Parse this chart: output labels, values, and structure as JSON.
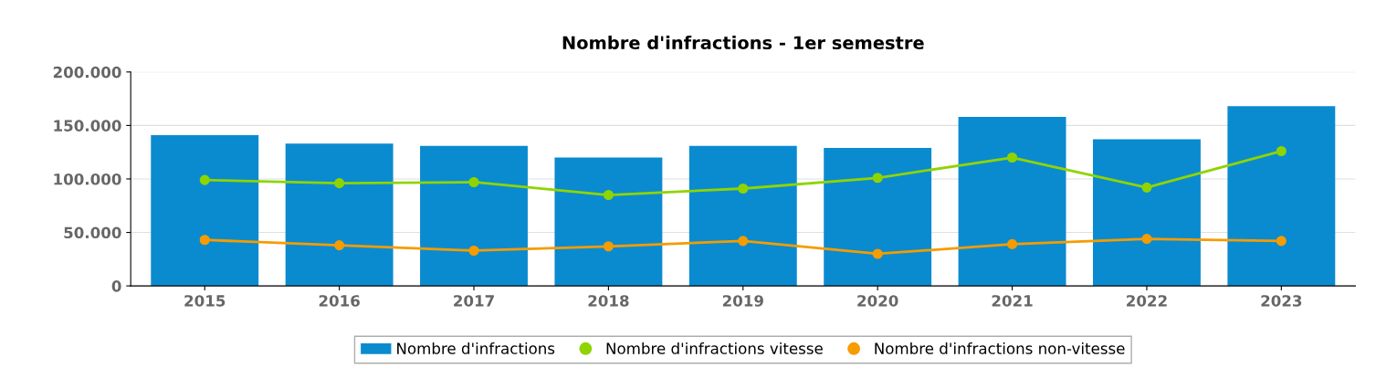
{
  "chart_data": {
    "type": "bar",
    "title": "Nombre d'infractions - 1er semestre",
    "categories": [
      "2015",
      "2016",
      "2017",
      "2018",
      "2019",
      "2020",
      "2021",
      "2022",
      "2023"
    ],
    "series": [
      {
        "name": "Nombre d'infractions",
        "color": "#0a8bd0",
        "values": [
          141000,
          133000,
          131000,
          120000,
          131000,
          129000,
          158000,
          137000,
          168000
        ]
      },
      {
        "name": "Nombre d'infractions vitesse",
        "type": "line",
        "color": "#8fd400",
        "values": [
          99000,
          96000,
          97000,
          85000,
          91000,
          101000,
          120000,
          92000,
          126000
        ]
      },
      {
        "name": "Nombre d'infractions non-vitesse",
        "type": "line",
        "color": "#f59c00",
        "values": [
          43000,
          38000,
          33000,
          37000,
          42000,
          30000,
          39000,
          44000,
          42000
        ]
      }
    ],
    "ylim": [
      0,
      200000
    ],
    "yticks": [
      {
        "value": 0,
        "label": "0"
      },
      {
        "value": 50000,
        "label": "50.000"
      },
      {
        "value": 100000,
        "label": "100.000"
      },
      {
        "value": 150000,
        "label": "150.000"
      },
      {
        "value": 200000,
        "label": "200.000"
      }
    ],
    "grid": "y",
    "legend": "bottom",
    "marker": "circle",
    "line_style": "solid"
  }
}
